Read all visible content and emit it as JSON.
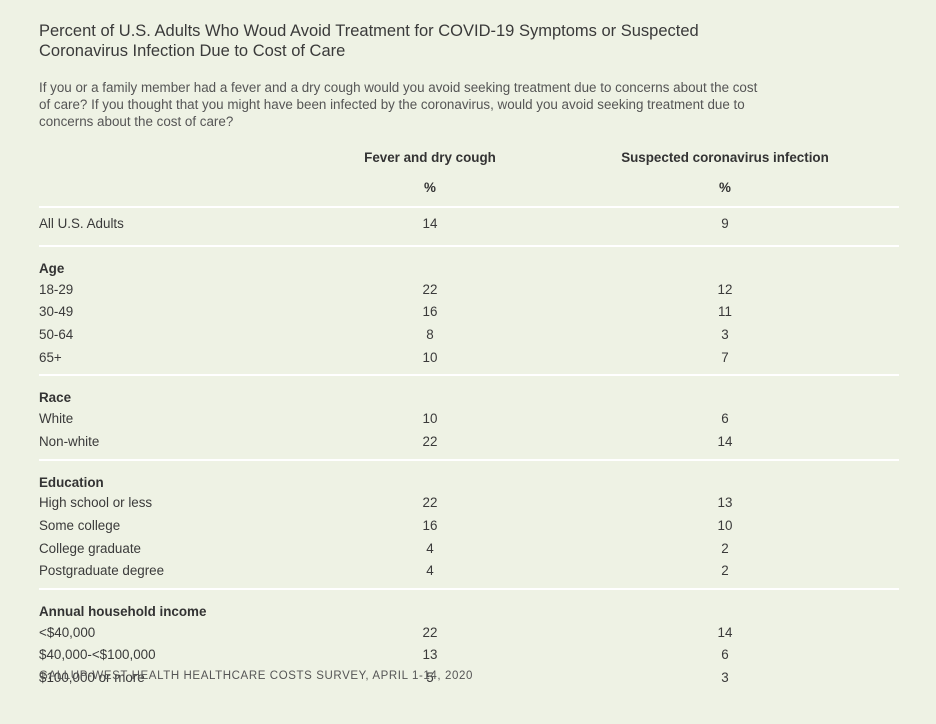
{
  "title": "Percent of U.S. Adults Who Woud Avoid Treatment for COVID-19 Symptoms or Suspected Coronavirus Infection Due to Cost of Care",
  "subtitle": "If you or a family member had a fever and a dry cough would you avoid seeking treatment due to concerns about the cost of care? If you thought that you might have been infected by the coronavirus, would you avoid seeking treatment due to concerns about the cost of care?",
  "footer": "GALLUP-WEST HEALTH HEALTHCARE COSTS SURVEY, APRIL 1-14, 2020",
  "colors": {
    "background": "#eef2e4",
    "divider": "#ffffff",
    "text": "#333333"
  },
  "chart_data": {
    "type": "table",
    "columns": [
      "Fever and dry cough",
      "Suspected coronavirus infection"
    ],
    "units": [
      "%",
      "%"
    ],
    "overall": {
      "label": "All U.S. Adults",
      "values": [
        14,
        9
      ]
    },
    "groups": [
      {
        "name": "Age",
        "rows": [
          {
            "label": "18-29",
            "values": [
              22,
              12
            ]
          },
          {
            "label": "30-49",
            "values": [
              16,
              11
            ]
          },
          {
            "label": "50-64",
            "values": [
              8,
              3
            ]
          },
          {
            "label": "65+",
            "values": [
              10,
              7
            ]
          }
        ]
      },
      {
        "name": "Race",
        "rows": [
          {
            "label": "White",
            "values": [
              10,
              6
            ]
          },
          {
            "label": "Non-white",
            "values": [
              22,
              14
            ]
          }
        ]
      },
      {
        "name": "Education",
        "rows": [
          {
            "label": "High school or less",
            "values": [
              22,
              13
            ]
          },
          {
            "label": "Some college",
            "values": [
              16,
              10
            ]
          },
          {
            "label": "College graduate",
            "values": [
              4,
              2
            ]
          },
          {
            "label": "Postgraduate degree",
            "values": [
              4,
              2
            ]
          }
        ]
      },
      {
        "name": "Annual household income",
        "rows": [
          {
            "label": "<$40,000",
            "values": [
              22,
              14
            ]
          },
          {
            "label": "$40,000-<$100,000",
            "values": [
              13,
              6
            ]
          },
          {
            "label": "$100,000 or more",
            "values": [
              5,
              3
            ]
          }
        ]
      }
    ]
  }
}
